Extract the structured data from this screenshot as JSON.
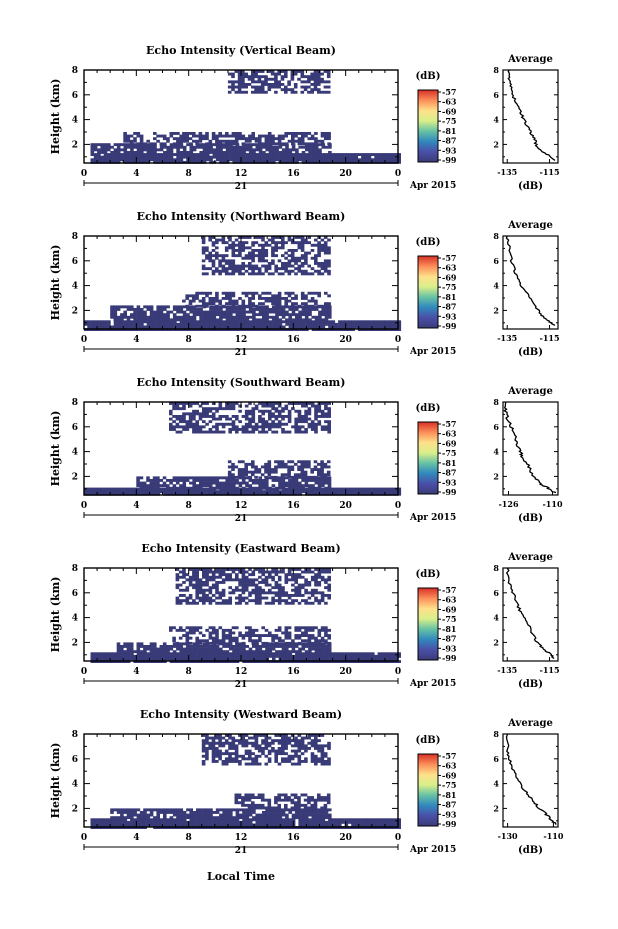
{
  "figure": {
    "xlabel_bottom": "Local Time",
    "day_label": "21",
    "month_label": "Apr 2015",
    "colorbar_unit": "(dB)",
    "avg_title": "Average",
    "avg_xlabel": "(dB)",
    "ylabel": "Height (km)"
  },
  "chart_data": [
    {
      "type": "heatmap",
      "title": "Echo Intensity (Vertical Beam)",
      "ylabel": "Height (km)",
      "x_ticks": [
        "0",
        "4",
        "8",
        "12",
        "16",
        "20",
        "0"
      ],
      "xlim_hours": [
        0,
        24
      ],
      "y_ticks": [
        "2",
        "4",
        "6",
        "8"
      ],
      "ylim_km": [
        0.5,
        8
      ],
      "colorbar_ticks": [
        "-57",
        "-63",
        "-69",
        "-75",
        "-81",
        "-87",
        "-93",
        "-99"
      ],
      "colors": [
        "#d73027",
        "#fc8d59",
        "#fee08b",
        "#d9ef8b",
        "#66c2a5",
        "#3288bd",
        "#4a4fa8",
        "#3b3b78"
      ],
      "echo_regions_hours_km": [
        {
          "x0": 0.5,
          "x1": 24,
          "y0": 0.5,
          "y1": 1.3
        },
        {
          "x0": 0.5,
          "x1": 18.7,
          "y0": 1.3,
          "y1": 2.1
        },
        {
          "x0": 7.5,
          "x1": 18.7,
          "y0": 2.1,
          "y1": 3.0
        },
        {
          "x0": 3.0,
          "x1": 7.5,
          "y0": 2.1,
          "y1": 3.0
        },
        {
          "x0": 11.0,
          "x1": 18.7,
          "y0": 6.2,
          "y1": 8.0
        }
      ],
      "avg_panel": {
        "title": "Average",
        "xlabel": "(dB)",
        "xticks": [
          "-135",
          "-115"
        ],
        "xlim": [
          -137,
          -111
        ],
        "yticks": [
          "2",
          "4",
          "6",
          "8"
        ],
        "ylim": [
          0.5,
          8
        ],
        "profile": [
          {
            "x": -113,
            "y": 0.7
          },
          {
            "x": -115,
            "y": 1.1
          },
          {
            "x": -118,
            "y": 1.4
          },
          {
            "x": -121,
            "y": 1.8
          },
          {
            "x": -122,
            "y": 2.4
          },
          {
            "x": -124,
            "y": 3.0
          },
          {
            "x": -126,
            "y": 3.6
          },
          {
            "x": -128,
            "y": 4.3
          },
          {
            "x": -130,
            "y": 5.0
          },
          {
            "x": -132,
            "y": 5.8
          },
          {
            "x": -133,
            "y": 6.6
          },
          {
            "x": -134,
            "y": 7.3
          },
          {
            "x": -134,
            "y": 8.0
          }
        ]
      }
    },
    {
      "type": "heatmap",
      "title": "Echo Intensity (Northward Beam)",
      "ylabel": "Height (km)",
      "x_ticks": [
        "0",
        "4",
        "8",
        "12",
        "16",
        "20",
        "0"
      ],
      "xlim_hours": [
        0,
        24
      ],
      "y_ticks": [
        "2",
        "4",
        "6",
        "8"
      ],
      "ylim_km": [
        0.5,
        8
      ],
      "colorbar_ticks": [
        "-57",
        "-63",
        "-69",
        "-75",
        "-81",
        "-87",
        "-93",
        "-99"
      ],
      "colors": [
        "#d73027",
        "#fc8d59",
        "#fee08b",
        "#d9ef8b",
        "#66c2a5",
        "#3288bd",
        "#4a4fa8",
        "#3b3b78"
      ],
      "echo_regions_hours_km": [
        {
          "x0": 0,
          "x1": 24,
          "y0": 0.5,
          "y1": 1.2
        },
        {
          "x0": 2.0,
          "x1": 18.7,
          "y0": 1.2,
          "y1": 2.4
        },
        {
          "x0": 7.5,
          "x1": 18.7,
          "y0": 2.4,
          "y1": 3.5
        },
        {
          "x0": 9.0,
          "x1": 18.7,
          "y0": 5.0,
          "y1": 8.0
        }
      ],
      "avg_panel": {
        "title": "Average",
        "xlabel": "(dB)",
        "xticks": [
          "-135",
          "-115"
        ],
        "xlim": [
          -137,
          -111
        ],
        "yticks": [
          "2",
          "4",
          "6",
          "8"
        ],
        "ylim": [
          0.5,
          8
        ],
        "profile": [
          {
            "x": -113,
            "y": 0.8
          },
          {
            "x": -116,
            "y": 1.2
          },
          {
            "x": -119,
            "y": 1.6
          },
          {
            "x": -121,
            "y": 2.2
          },
          {
            "x": -123,
            "y": 2.8
          },
          {
            "x": -126,
            "y": 3.4
          },
          {
            "x": -129,
            "y": 4.2
          },
          {
            "x": -131,
            "y": 5.0
          },
          {
            "x": -133,
            "y": 6.0
          },
          {
            "x": -134,
            "y": 7.0
          },
          {
            "x": -135,
            "y": 8.0
          }
        ]
      }
    },
    {
      "type": "heatmap",
      "title": "Echo Intensity (Southward Beam)",
      "ylabel": "Height (km)",
      "x_ticks": [
        "0",
        "4",
        "8",
        "12",
        "16",
        "20",
        "0"
      ],
      "xlim_hours": [
        0,
        24
      ],
      "y_ticks": [
        "2",
        "4",
        "6",
        "8"
      ],
      "ylim_km": [
        0.5,
        8
      ],
      "colorbar_ticks": [
        "-57",
        "-63",
        "-69",
        "-75",
        "-81",
        "-87",
        "-93",
        "-99"
      ],
      "colors": [
        "#d73027",
        "#fc8d59",
        "#fee08b",
        "#d9ef8b",
        "#66c2a5",
        "#3288bd",
        "#4a4fa8",
        "#3b3b78"
      ],
      "echo_regions_hours_km": [
        {
          "x0": 0,
          "x1": 24,
          "y0": 0.5,
          "y1": 1.1
        },
        {
          "x0": 4.0,
          "x1": 18.7,
          "y0": 1.1,
          "y1": 2.0
        },
        {
          "x0": 11.0,
          "x1": 18.7,
          "y0": 2.0,
          "y1": 3.3
        },
        {
          "x0": 6.5,
          "x1": 18.7,
          "y0": 5.5,
          "y1": 8.0
        }
      ],
      "avg_panel": {
        "title": "Average",
        "xlabel": "(dB)",
        "xticks": [
          "-126",
          "-110"
        ],
        "xlim": [
          -128,
          -108
        ],
        "yticks": [
          "2",
          "4",
          "6",
          "8"
        ],
        "ylim": [
          0.5,
          8
        ],
        "profile": [
          {
            "x": -109,
            "y": 0.7
          },
          {
            "x": -112,
            "y": 1.1
          },
          {
            "x": -115,
            "y": 1.5
          },
          {
            "x": -117,
            "y": 2.1
          },
          {
            "x": -119,
            "y": 2.9
          },
          {
            "x": -121,
            "y": 3.6
          },
          {
            "x": -122,
            "y": 4.1
          },
          {
            "x": -123,
            "y": 4.8
          },
          {
            "x": -124,
            "y": 5.6
          },
          {
            "x": -126,
            "y": 6.4
          },
          {
            "x": -127,
            "y": 7.3
          },
          {
            "x": -127,
            "y": 8.0
          }
        ]
      }
    },
    {
      "type": "heatmap",
      "title": "Echo Intensity (Eastward Beam)",
      "ylabel": "Height (km)",
      "x_ticks": [
        "0",
        "4",
        "8",
        "12",
        "16",
        "20",
        "0"
      ],
      "xlim_hours": [
        0,
        24
      ],
      "y_ticks": [
        "2",
        "4",
        "6",
        "8"
      ],
      "ylim_km": [
        0.5,
        8
      ],
      "colorbar_ticks": [
        "-57",
        "-63",
        "-69",
        "-75",
        "-81",
        "-87",
        "-93",
        "-99"
      ],
      "colors": [
        "#d73027",
        "#fc8d59",
        "#fee08b",
        "#d9ef8b",
        "#66c2a5",
        "#3288bd",
        "#4a4fa8",
        "#3b3b78"
      ],
      "echo_regions_hours_km": [
        {
          "x0": 0.5,
          "x1": 24,
          "y0": 0.5,
          "y1": 1.2
        },
        {
          "x0": 2.5,
          "x1": 18.7,
          "y0": 1.2,
          "y1": 2.0
        },
        {
          "x0": 6.5,
          "x1": 18.7,
          "y0": 2.0,
          "y1": 3.3
        },
        {
          "x0": 7.0,
          "x1": 18.7,
          "y0": 5.2,
          "y1": 8.0
        }
      ],
      "avg_panel": {
        "title": "Average",
        "xlabel": "(dB)",
        "xticks": [
          "-135",
          "-115"
        ],
        "xlim": [
          -137,
          -111
        ],
        "yticks": [
          "2",
          "4",
          "6",
          "8"
        ],
        "ylim": [
          0.5,
          8
        ],
        "profile": [
          {
            "x": -113,
            "y": 0.7
          },
          {
            "x": -115,
            "y": 1.1
          },
          {
            "x": -118,
            "y": 1.5
          },
          {
            "x": -121,
            "y": 2.0
          },
          {
            "x": -123,
            "y": 2.7
          },
          {
            "x": -125,
            "y": 3.4
          },
          {
            "x": -128,
            "y": 4.2
          },
          {
            "x": -130,
            "y": 5.0
          },
          {
            "x": -132,
            "y": 5.9
          },
          {
            "x": -134,
            "y": 6.8
          },
          {
            "x": -135,
            "y": 8.0
          }
        ]
      }
    },
    {
      "type": "heatmap",
      "title": "Echo Intensity (Westward Beam)",
      "ylabel": "Height (km)",
      "x_ticks": [
        "0",
        "4",
        "8",
        "12",
        "16",
        "20",
        "0"
      ],
      "xlim_hours": [
        0,
        24
      ],
      "y_ticks": [
        "2",
        "4",
        "6",
        "8"
      ],
      "ylim_km": [
        0.5,
        8
      ],
      "colorbar_ticks": [
        "-57",
        "-63",
        "-69",
        "-75",
        "-81",
        "-87",
        "-93",
        "-99"
      ],
      "colors": [
        "#d73027",
        "#fc8d59",
        "#fee08b",
        "#d9ef8b",
        "#66c2a5",
        "#3288bd",
        "#4a4fa8",
        "#3b3b78"
      ],
      "echo_regions_hours_km": [
        {
          "x0": 0.5,
          "x1": 24,
          "y0": 0.5,
          "y1": 1.2
        },
        {
          "x0": 2.0,
          "x1": 18.7,
          "y0": 1.2,
          "y1": 2.0
        },
        {
          "x0": 11.5,
          "x1": 18.7,
          "y0": 2.0,
          "y1": 3.2
        },
        {
          "x0": 9.0,
          "x1": 18.7,
          "y0": 5.5,
          "y1": 8.0
        }
      ],
      "avg_panel": {
        "title": "Average",
        "xlabel": "(dB)",
        "xticks": [
          "-130",
          "-110"
        ],
        "xlim": [
          -132,
          -108
        ],
        "yticks": [
          "2",
          "4",
          "6",
          "8"
        ],
        "ylim": [
          0.5,
          8
        ],
        "profile": [
          {
            "x": -109,
            "y": 0.7
          },
          {
            "x": -111,
            "y": 1.1
          },
          {
            "x": -113,
            "y": 1.5
          },
          {
            "x": -116,
            "y": 2.0
          },
          {
            "x": -119,
            "y": 2.6
          },
          {
            "x": -122,
            "y": 3.3
          },
          {
            "x": -125,
            "y": 4.1
          },
          {
            "x": -127,
            "y": 4.9
          },
          {
            "x": -129,
            "y": 5.8
          },
          {
            "x": -130,
            "y": 6.6
          },
          {
            "x": -130,
            "y": 8.0
          }
        ]
      }
    }
  ]
}
